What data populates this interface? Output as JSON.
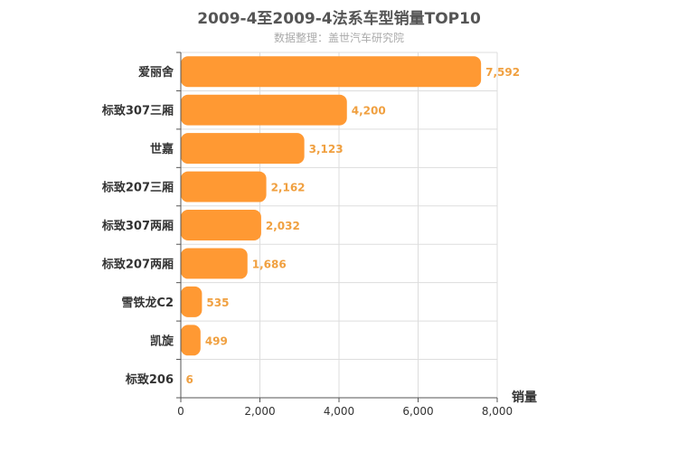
{
  "chart_data": {
    "type": "bar",
    "orientation": "horizontal",
    "title": "2009-4至2009-4法系车型销量TOP10",
    "subtitle": "数据整理：盖世汽车研究院",
    "xlabel": "销量",
    "ylabel": "",
    "xlim": [
      0,
      8000
    ],
    "x_ticks": [
      "0",
      "2,000",
      "4,000",
      "6,000",
      "8,000"
    ],
    "grid": true,
    "categories": [
      "爱丽舍",
      "标致307三厢",
      "世嘉",
      "标致207三厢",
      "标致307两厢",
      "标致207两厢",
      "雪铁龙C2",
      "凯旋",
      "标致206"
    ],
    "values": [
      7592,
      4200,
      3123,
      2162,
      2032,
      1686,
      535,
      499,
      6
    ],
    "value_labels": [
      "7,592",
      "4,200",
      "3,123",
      "2,162",
      "2,032",
      "1,686",
      "535",
      "499",
      "6"
    ],
    "colors": {
      "bar": "#ff9933",
      "value_label": "#f0a040",
      "axis": "#555555",
      "grid": "#dddddd"
    }
  }
}
